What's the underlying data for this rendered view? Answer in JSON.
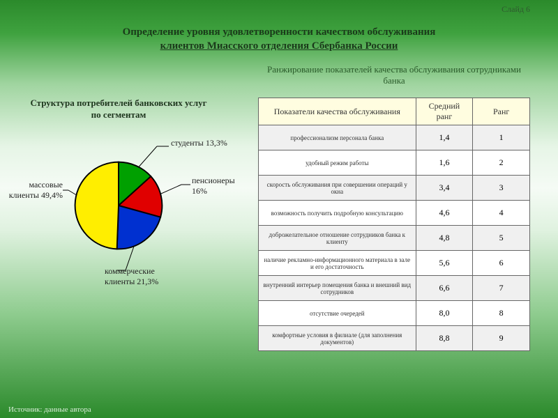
{
  "slide_number": "Слайд 6",
  "main_title_l1": "Определение уровня удовлетворенности качеством обслуживания",
  "main_title_l2": "клиентов Миасского отделения Сбербанка России",
  "table_caption": "Ранжирование показателей качества обслуживания сотрудниками банка",
  "pie_title_l1": "Структура потребителей банковских услуг",
  "pie_title_l2": "по сегментам",
  "source": "Источник: данные автора",
  "pie": {
    "type": "pie",
    "background": "transparent",
    "stroke": "#000000",
    "stroke_width": 1.5,
    "start_angle_deg": -90,
    "slices": [
      {
        "label_a": "студенты 13,3%",
        "value": 13.3,
        "color": "#00a000"
      },
      {
        "label_a": "пенсионеры",
        "label_b": "16%",
        "value": 16.0,
        "color": "#e00000"
      },
      {
        "label_a": "коммерческие",
        "label_b": "клиенты 21,3%",
        "value": 21.3,
        "color": "#0030d0"
      },
      {
        "label_a": "массовые",
        "label_b": "клиенты 49,4%",
        "value": 49.4,
        "color": "#ffee00"
      }
    ],
    "label_fontsize": 12
  },
  "table": {
    "headers": [
      "Показатели качества обслуживания",
      "Средний ранг",
      "Ранг"
    ],
    "header_bg": "#fffde0",
    "row_alt_bg": "#f0f0f0",
    "row_bg": "#ffffff",
    "border_color": "#666666",
    "rows": [
      {
        "desc": "профессионализм персонала банка",
        "avg": "1,4",
        "rank": "1"
      },
      {
        "desc": "удобный режим работы",
        "avg": "1,6",
        "rank": "2"
      },
      {
        "desc": "скорость обслуживания при совершении операций у окна",
        "avg": "3,4",
        "rank": "3"
      },
      {
        "desc": "возможность получить подробную консультацию",
        "avg": "4,6",
        "rank": "4"
      },
      {
        "desc": "доброжелательное отношение сотрудников банка к клиенту",
        "avg": "4,8",
        "rank": "5"
      },
      {
        "desc": "наличие рекламно-информационного материала в зале и его достаточность",
        "avg": "5,6",
        "rank": "6"
      },
      {
        "desc": "внутренний интерьер помещения банка и внешний вид сотрудников",
        "avg": "6,6",
        "rank": "7"
      },
      {
        "desc": "отсутствие очередей",
        "avg": "8,0",
        "rank": "8"
      },
      {
        "desc": "комфортные условия в филиале (для заполнения документов)",
        "avg": "8,8",
        "rank": "9"
      }
    ]
  }
}
